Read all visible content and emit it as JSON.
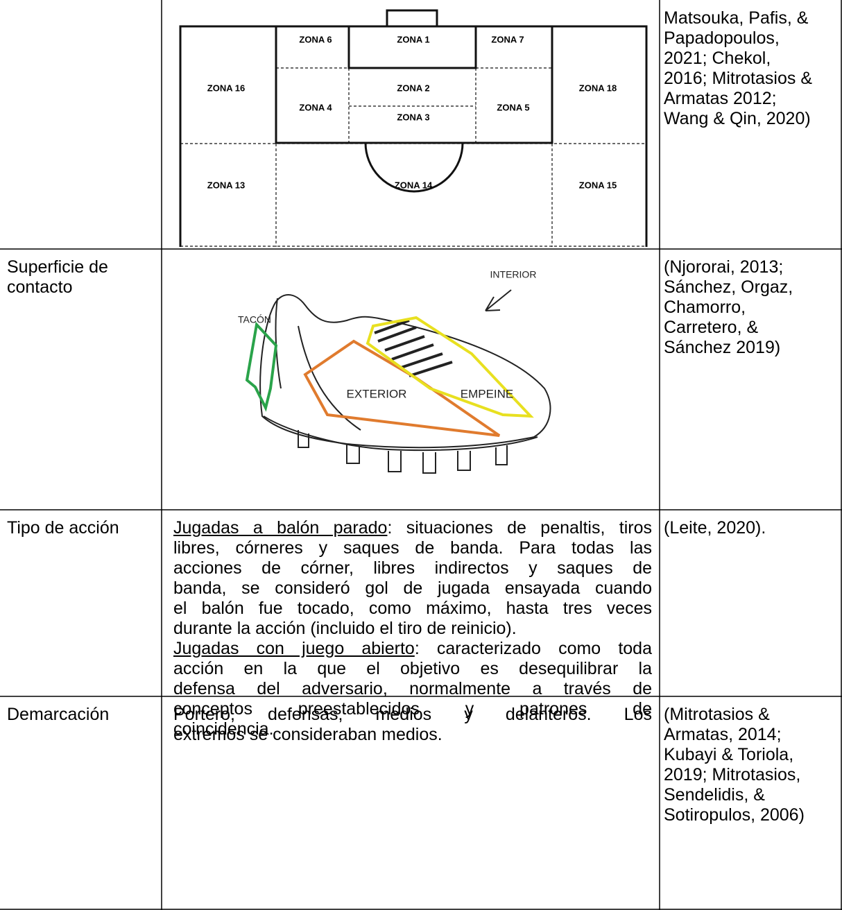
{
  "table": {
    "rows": [
      {
        "label": [],
        "figure": {
          "zones": [
            "ZONA 6",
            "ZONA 1",
            "ZONA 7",
            "ZONA 16",
            "ZONA 2",
            "ZONA 18",
            "ZONA 4",
            "ZONA 5",
            "ZONA 3",
            "ZONA 13",
            "ZONA 14",
            "ZONA 15"
          ]
        },
        "source": [
          "Matsouka, Pafis, &",
          "Papadopoulos,",
          "2021; Chekol,",
          "2016; Mitrotasios &",
          "Armatas 2012;",
          "Wang & Qin, 2020)"
        ]
      },
      {
        "label": [
          "Superficie de",
          "contacto"
        ],
        "figure": {
          "labels": [
            "INTERIOR",
            "TACÓN",
            "EXTERIOR",
            "EMPEINE"
          ]
        },
        "source": [
          "(Njororai, 2013;",
          "Sánchez, Orgaz,",
          "Chamorro,",
          "Carretero, &",
          "Sánchez 2019)"
        ]
      },
      {
        "label": [
          "Tipo de acción"
        ],
        "paragraphs": [
          {
            "term": "Jugadas a balón parado",
            "lines": [
              ": situaciones de penaltis, tiros",
              "libres, córneres y saques de banda. Para todas las",
              "acciones de córner, libres indirectos y saques de",
              "banda, se consideró gol de jugada ensayada cuando",
              "el balón fue tocado, como máximo, hasta tres veces",
              "durante la acción (incluido el tiro de reinicio)."
            ]
          },
          {
            "term": "Jugadas con juego abierto",
            "lines": [
              ": caracterizado como toda",
              "acción en la que el objetivo es desequilibrar la",
              "defensa del adversario, normalmente a través de",
              "conceptos preestablecidos y patrones de",
              "coincidencia."
            ]
          }
        ],
        "source": [
          "(Leite, 2020)."
        ]
      },
      {
        "label": [
          "Demarcación"
        ],
        "paragraphs": [
          {
            "lines": [
              "Portero, defensas, medios y delanteros. Los",
              "extremos se consideraban medios."
            ]
          }
        ],
        "source": [
          "(Mitrotasios &",
          "Armatas, 2014;",
          "Kubayi & Toriola,",
          "2019; Mitrotasios,",
          "Sendelidis, &",
          "Sotiropulos, 2006)"
        ]
      }
    ]
  }
}
